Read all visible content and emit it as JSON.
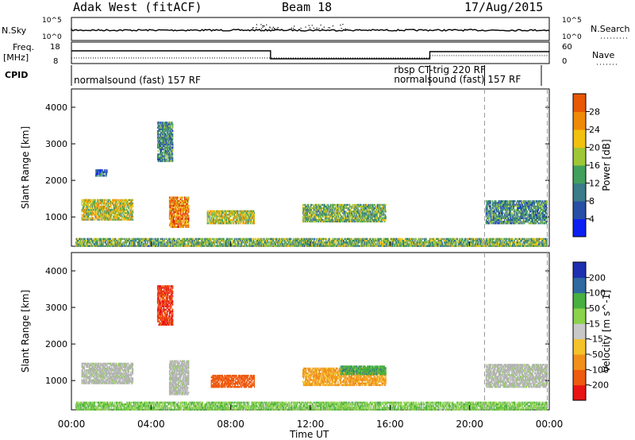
{
  "header": {
    "station": "Adak West (fitACF)",
    "beam": "Beam 18",
    "date": "17/Aug/2015"
  },
  "colors": {
    "power_scale": [
      "#0b1ff2",
      "#274fa6",
      "#3a7c88",
      "#41a05c",
      "#9fc636",
      "#f2c10d",
      "#ef8a08",
      "#e85806",
      "#e0180c"
    ],
    "velocity_scale": [
      "#e81414",
      "#ee5a10",
      "#f0901a",
      "#f4c22a",
      "#c8c8c8",
      "#8cd24c",
      "#48b040",
      "#2e6aa0",
      "#1e2fb0"
    ],
    "ground_scatter": "#b4b4b4"
  },
  "top_panels": {
    "nsky_label": "N.Sky",
    "nsky_ticks": [
      "10^5",
      "10^0"
    ],
    "nsearch_label": "N.Search",
    "nsearch_ticks": [
      "10^5",
      "10^0"
    ],
    "freq_label_1": "Freq.",
    "freq_label_2": "[MHz]",
    "freq_ticks": [
      "18",
      "8"
    ],
    "nave_label": "Nave",
    "nave_ticks": [
      "60",
      "0"
    ],
    "cpid_label": "CPID",
    "cpid_modes": [
      {
        "label": "normalsound (fast) 157 RF",
        "start": 0.0,
        "end": 18.0
      },
      {
        "label": "rbsp CT-trig 220 RF",
        "start": 18.0,
        "end": 20.75
      },
      {
        "label": "normalsound (fast) 157 RF",
        "start": 20.75,
        "end": 24.0
      }
    ]
  },
  "chart_data": [
    {
      "type": "heatmap",
      "title": "",
      "xlabel": "",
      "ylabel": "Slant Range [km]",
      "colorbar_label": "Power [dB]",
      "colorbar_ticks": [
        "4",
        "8",
        "12",
        "16",
        "20",
        "24",
        "28"
      ],
      "xlim": [
        0,
        24
      ],
      "ylim": [
        200,
        4500
      ],
      "yticks": [
        "1000",
        "2000",
        "3000",
        "4000"
      ],
      "regions": [
        {
          "t0": 0.5,
          "t1": 3.1,
          "r0": 900,
          "r1": 1480,
          "level": 4
        },
        {
          "t0": 4.9,
          "t1": 5.9,
          "r0": 700,
          "r1": 1550,
          "level": 6
        },
        {
          "t0": 6.8,
          "t1": 9.2,
          "r0": 800,
          "r1": 1180,
          "level": 4
        },
        {
          "t0": 11.6,
          "t1": 15.8,
          "r0": 850,
          "r1": 1350,
          "level": 3
        },
        {
          "t0": 20.8,
          "t1": 23.9,
          "r0": 800,
          "r1": 1450,
          "level": 2
        },
        {
          "t0": 4.3,
          "t1": 5.1,
          "r0": 2500,
          "r1": 3600,
          "level": 2
        },
        {
          "t0": 1.2,
          "t1": 1.8,
          "r0": 2100,
          "r1": 2300,
          "level": 1
        },
        {
          "t0": 0.2,
          "t1": 23.9,
          "r0": 180,
          "r1": 420,
          "level": 3
        }
      ]
    },
    {
      "type": "heatmap",
      "title": "",
      "xlabel": "Time UT",
      "ylabel": "Slant Range [km]",
      "colorbar_label": "Velocity [m s^-1]",
      "colorbar_ticks": [
        "-200",
        "-100",
        "-50",
        "-15",
        "15",
        "50",
        "100",
        "200"
      ],
      "xlim": [
        0,
        24
      ],
      "ylim": [
        200,
        4500
      ],
      "yticks": [
        "1000",
        "2000",
        "3000",
        "4000"
      ],
      "xticks": [
        "00:00",
        "04:00",
        "08:00",
        "12:00",
        "16:00",
        "20:00",
        "00:00"
      ],
      "regions": [
        {
          "t0": 0.5,
          "t1": 3.1,
          "r0": 900,
          "r1": 1480,
          "level": "ground"
        },
        {
          "t0": 4.9,
          "t1": 5.9,
          "r0": 600,
          "r1": 1550,
          "level": "ground"
        },
        {
          "t0": 7.0,
          "t1": 9.2,
          "r0": 800,
          "r1": 1150,
          "level": -150
        },
        {
          "t0": 11.6,
          "t1": 15.8,
          "r0": 850,
          "r1": 1350,
          "level": -60
        },
        {
          "t0": 13.5,
          "t1": 15.8,
          "r0": 1150,
          "r1": 1400,
          "level": 80
        },
        {
          "t0": 20.8,
          "t1": 23.9,
          "r0": 800,
          "r1": 1450,
          "level": "ground"
        },
        {
          "t0": 4.3,
          "t1": 5.1,
          "r0": 2500,
          "r1": 3600,
          "level": -200
        },
        {
          "t0": 0.2,
          "t1": 23.9,
          "r0": 180,
          "r1": 420,
          "level": 40
        }
      ]
    }
  ]
}
